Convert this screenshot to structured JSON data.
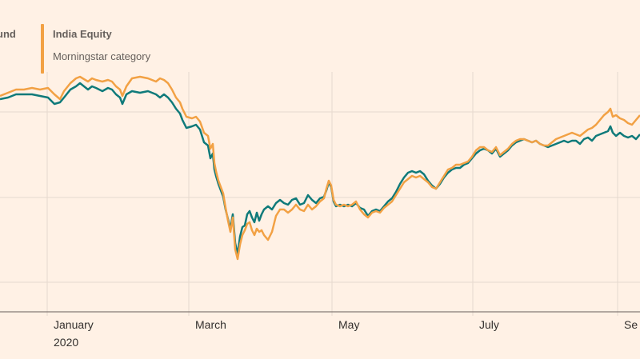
{
  "legend": [
    {
      "title": "und",
      "color": "#0f7a7a"
    },
    {
      "title": "India Equity",
      "subtitle": "Morningstar category",
      "color": "#f2a144"
    }
  ],
  "chart_data": {
    "type": "line",
    "x_ticks": [
      "January",
      "March",
      "May",
      "July",
      "Se"
    ],
    "x_year": "2020",
    "grid": "horizontal",
    "series": [
      {
        "color": "#0f7a7a",
        "points": [
          [
            0,
            124
          ],
          [
            10,
            122
          ],
          [
            20,
            118
          ],
          [
            30,
            118
          ],
          [
            40,
            118
          ],
          [
            50,
            120
          ],
          [
            60,
            122
          ],
          [
            68,
            130
          ],
          [
            75,
            128
          ],
          [
            80,
            122
          ],
          [
            88,
            112
          ],
          [
            95,
            108
          ],
          [
            100,
            104
          ],
          [
            110,
            112
          ],
          [
            115,
            108
          ],
          [
            120,
            110
          ],
          [
            128,
            114
          ],
          [
            135,
            110
          ],
          [
            140,
            112
          ],
          [
            145,
            118
          ],
          [
            150,
            122
          ],
          [
            153,
            130
          ],
          [
            158,
            118
          ],
          [
            165,
            114
          ],
          [
            175,
            116
          ],
          [
            185,
            114
          ],
          [
            195,
            118
          ],
          [
            200,
            122
          ],
          [
            205,
            118
          ],
          [
            210,
            122
          ],
          [
            215,
            128
          ],
          [
            220,
            136
          ],
          [
            225,
            142
          ],
          [
            228,
            150
          ],
          [
            233,
            160
          ],
          [
            240,
            158
          ],
          [
            245,
            156
          ],
          [
            250,
            162
          ],
          [
            255,
            178
          ],
          [
            260,
            182
          ],
          [
            263,
            198
          ],
          [
            266,
            192
          ],
          [
            268,
            212
          ],
          [
            270,
            220
          ],
          [
            273,
            230
          ],
          [
            276,
            238
          ],
          [
            279,
            246
          ],
          [
            282,
            262
          ],
          [
            285,
            274
          ],
          [
            288,
            286
          ],
          [
            291,
            268
          ],
          [
            294,
            304
          ],
          [
            297,
            318
          ],
          [
            300,
            296
          ],
          [
            303,
            284
          ],
          [
            306,
            282
          ],
          [
            309,
            268
          ],
          [
            312,
            264
          ],
          [
            315,
            272
          ],
          [
            318,
            278
          ],
          [
            321,
            266
          ],
          [
            324,
            276
          ],
          [
            327,
            268
          ],
          [
            330,
            262
          ],
          [
            335,
            258
          ],
          [
            340,
            262
          ],
          [
            345,
            254
          ],
          [
            350,
            250
          ],
          [
            355,
            254
          ],
          [
            360,
            256
          ],
          [
            365,
            250
          ],
          [
            370,
            248
          ],
          [
            375,
            256
          ],
          [
            380,
            254
          ],
          [
            385,
            244
          ],
          [
            390,
            250
          ],
          [
            395,
            254
          ],
          [
            400,
            248
          ],
          [
            405,
            246
          ],
          [
            408,
            238
          ],
          [
            411,
            228
          ],
          [
            414,
            234
          ],
          [
            417,
            252
          ],
          [
            420,
            258
          ],
          [
            425,
            256
          ],
          [
            430,
            258
          ],
          [
            435,
            256
          ],
          [
            440,
            258
          ],
          [
            445,
            254
          ],
          [
            450,
            260
          ],
          [
            455,
            262
          ],
          [
            460,
            270
          ],
          [
            465,
            264
          ],
          [
            470,
            262
          ],
          [
            475,
            264
          ],
          [
            480,
            258
          ],
          [
            485,
            252
          ],
          [
            490,
            248
          ],
          [
            495,
            240
          ],
          [
            500,
            230
          ],
          [
            505,
            222
          ],
          [
            510,
            216
          ],
          [
            515,
            214
          ],
          [
            520,
            216
          ],
          [
            525,
            214
          ],
          [
            530,
            218
          ],
          [
            535,
            226
          ],
          [
            540,
            232
          ],
          [
            545,
            236
          ],
          [
            550,
            230
          ],
          [
            555,
            222
          ],
          [
            560,
            216
          ],
          [
            565,
            212
          ],
          [
            570,
            210
          ],
          [
            575,
            210
          ],
          [
            580,
            206
          ],
          [
            585,
            204
          ],
          [
            590,
            198
          ],
          [
            595,
            192
          ],
          [
            600,
            188
          ],
          [
            605,
            186
          ],
          [
            610,
            188
          ],
          [
            615,
            192
          ],
          [
            620,
            186
          ],
          [
            625,
            196
          ],
          [
            630,
            192
          ],
          [
            635,
            188
          ],
          [
            640,
            182
          ],
          [
            645,
            178
          ],
          [
            650,
            176
          ],
          [
            655,
            174
          ],
          [
            660,
            176
          ],
          [
            665,
            178
          ],
          [
            670,
            176
          ],
          [
            675,
            180
          ],
          [
            680,
            182
          ],
          [
            685,
            184
          ],
          [
            690,
            182
          ],
          [
            695,
            180
          ],
          [
            700,
            178
          ],
          [
            705,
            176
          ],
          [
            710,
            178
          ],
          [
            715,
            176
          ],
          [
            720,
            176
          ],
          [
            725,
            180
          ],
          [
            730,
            174
          ],
          [
            735,
            172
          ],
          [
            740,
            176
          ],
          [
            745,
            170
          ],
          [
            750,
            168
          ],
          [
            755,
            166
          ],
          [
            760,
            164
          ],
          [
            763,
            158
          ],
          [
            766,
            166
          ],
          [
            770,
            170
          ],
          [
            775,
            166
          ],
          [
            780,
            170
          ],
          [
            785,
            172
          ],
          [
            790,
            170
          ],
          [
            795,
            174
          ],
          [
            800,
            168
          ]
        ]
      },
      {
        "color": "#f2a144",
        "points": [
          [
            0,
            120
          ],
          [
            10,
            116
          ],
          [
            20,
            112
          ],
          [
            30,
            112
          ],
          [
            40,
            110
          ],
          [
            50,
            112
          ],
          [
            60,
            110
          ],
          [
            68,
            118
          ],
          [
            75,
            124
          ],
          [
            80,
            114
          ],
          [
            88,
            104
          ],
          [
            95,
            98
          ],
          [
            100,
            96
          ],
          [
            110,
            102
          ],
          [
            115,
            98
          ],
          [
            120,
            100
          ],
          [
            128,
            102
          ],
          [
            135,
            100
          ],
          [
            140,
            102
          ],
          [
            145,
            108
          ],
          [
            150,
            112
          ],
          [
            153,
            120
          ],
          [
            158,
            108
          ],
          [
            165,
            98
          ],
          [
            175,
            96
          ],
          [
            185,
            98
          ],
          [
            195,
            102
          ],
          [
            200,
            98
          ],
          [
            205,
            100
          ],
          [
            210,
            104
          ],
          [
            215,
            112
          ],
          [
            220,
            122
          ],
          [
            225,
            128
          ],
          [
            228,
            136
          ],
          [
            233,
            146
          ],
          [
            240,
            148
          ],
          [
            245,
            146
          ],
          [
            250,
            152
          ],
          [
            255,
            166
          ],
          [
            260,
            170
          ],
          [
            263,
            186
          ],
          [
            266,
            180
          ],
          [
            268,
            204
          ],
          [
            270,
            214
          ],
          [
            273,
            226
          ],
          [
            276,
            234
          ],
          [
            279,
            242
          ],
          [
            282,
            260
          ],
          [
            285,
            276
          ],
          [
            288,
            290
          ],
          [
            291,
            272
          ],
          [
            294,
            312
          ],
          [
            297,
            324
          ],
          [
            300,
            306
          ],
          [
            303,
            294
          ],
          [
            306,
            288
          ],
          [
            309,
            280
          ],
          [
            312,
            278
          ],
          [
            315,
            288
          ],
          [
            318,
            294
          ],
          [
            321,
            286
          ],
          [
            324,
            290
          ],
          [
            327,
            288
          ],
          [
            330,
            294
          ],
          [
            335,
            300
          ],
          [
            340,
            290
          ],
          [
            345,
            270
          ],
          [
            350,
            262
          ],
          [
            355,
            262
          ],
          [
            360,
            266
          ],
          [
            365,
            262
          ],
          [
            370,
            256
          ],
          [
            375,
            262
          ],
          [
            380,
            264
          ],
          [
            385,
            256
          ],
          [
            390,
            262
          ],
          [
            395,
            258
          ],
          [
            400,
            252
          ],
          [
            405,
            248
          ],
          [
            408,
            236
          ],
          [
            411,
            226
          ],
          [
            414,
            232
          ],
          [
            417,
            250
          ],
          [
            420,
            256
          ],
          [
            425,
            258
          ],
          [
            430,
            256
          ],
          [
            435,
            258
          ],
          [
            440,
            256
          ],
          [
            445,
            252
          ],
          [
            450,
            262
          ],
          [
            455,
            268
          ],
          [
            460,
            272
          ],
          [
            465,
            266
          ],
          [
            470,
            264
          ],
          [
            475,
            266
          ],
          [
            480,
            260
          ],
          [
            485,
            256
          ],
          [
            490,
            252
          ],
          [
            495,
            244
          ],
          [
            500,
            236
          ],
          [
            505,
            228
          ],
          [
            510,
            224
          ],
          [
            515,
            220
          ],
          [
            520,
            222
          ],
          [
            525,
            220
          ],
          [
            530,
            224
          ],
          [
            535,
            228
          ],
          [
            540,
            234
          ],
          [
            545,
            236
          ],
          [
            550,
            228
          ],
          [
            555,
            220
          ],
          [
            560,
            212
          ],
          [
            565,
            210
          ],
          [
            570,
            206
          ],
          [
            575,
            206
          ],
          [
            580,
            204
          ],
          [
            585,
            202
          ],
          [
            590,
            196
          ],
          [
            595,
            188
          ],
          [
            600,
            184
          ],
          [
            605,
            184
          ],
          [
            610,
            188
          ],
          [
            615,
            190
          ],
          [
            620,
            184
          ],
          [
            625,
            194
          ],
          [
            630,
            190
          ],
          [
            635,
            186
          ],
          [
            640,
            180
          ],
          [
            645,
            176
          ],
          [
            650,
            174
          ],
          [
            655,
            174
          ],
          [
            660,
            176
          ],
          [
            665,
            178
          ],
          [
            670,
            176
          ],
          [
            675,
            180
          ],
          [
            680,
            182
          ],
          [
            685,
            182
          ],
          [
            690,
            178
          ],
          [
            695,
            174
          ],
          [
            700,
            172
          ],
          [
            705,
            170
          ],
          [
            710,
            168
          ],
          [
            715,
            166
          ],
          [
            720,
            168
          ],
          [
            725,
            170
          ],
          [
            730,
            166
          ],
          [
            735,
            162
          ],
          [
            740,
            160
          ],
          [
            745,
            156
          ],
          [
            750,
            150
          ],
          [
            755,
            144
          ],
          [
            760,
            140
          ],
          [
            763,
            136
          ],
          [
            766,
            146
          ],
          [
            770,
            144
          ],
          [
            775,
            148
          ],
          [
            780,
            150
          ],
          [
            785,
            154
          ],
          [
            790,
            156
          ],
          [
            795,
            150
          ],
          [
            800,
            144
          ]
        ]
      }
    ]
  }
}
